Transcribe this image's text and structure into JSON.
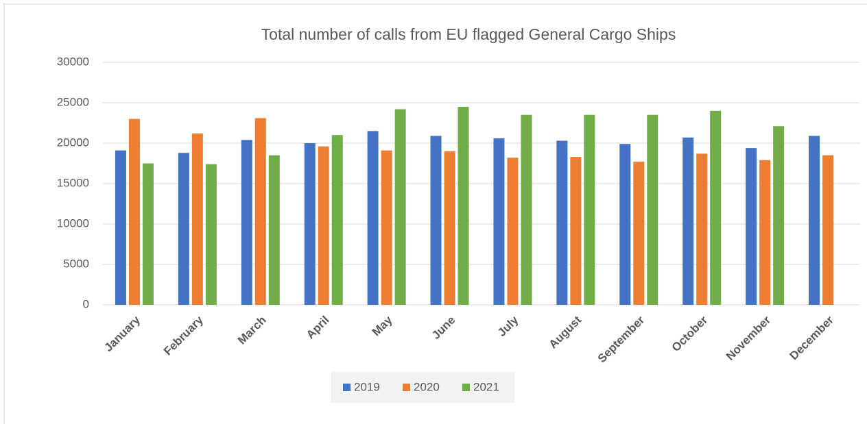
{
  "chart_data": {
    "type": "bar",
    "title": "Total number of calls from EU flagged General Cargo Ships",
    "categories": [
      "January",
      "February",
      "March",
      "April",
      "May",
      "June",
      "July",
      "August",
      "September",
      "October",
      "November",
      "December"
    ],
    "series": [
      {
        "name": "2019",
        "color": "#4472c4",
        "values": [
          19100,
          18800,
          20400,
          20000,
          21500,
          20900,
          20600,
          20300,
          19900,
          20700,
          19400,
          20900
        ]
      },
      {
        "name": "2020",
        "color": "#ed7d31",
        "values": [
          23000,
          21200,
          23100,
          19600,
          19100,
          19000,
          18200,
          18300,
          17700,
          18700,
          17900,
          18500
        ]
      },
      {
        "name": "2021",
        "color": "#70ad47",
        "values": [
          17500,
          17400,
          18500,
          21000,
          24200,
          24500,
          23500,
          23500,
          23500,
          24000,
          22100,
          null
        ]
      }
    ],
    "ylim": [
      0,
      30000
    ],
    "yticks": [
      0,
      5000,
      10000,
      15000,
      20000,
      25000,
      30000
    ],
    "grid": true,
    "legend": "bottom"
  }
}
